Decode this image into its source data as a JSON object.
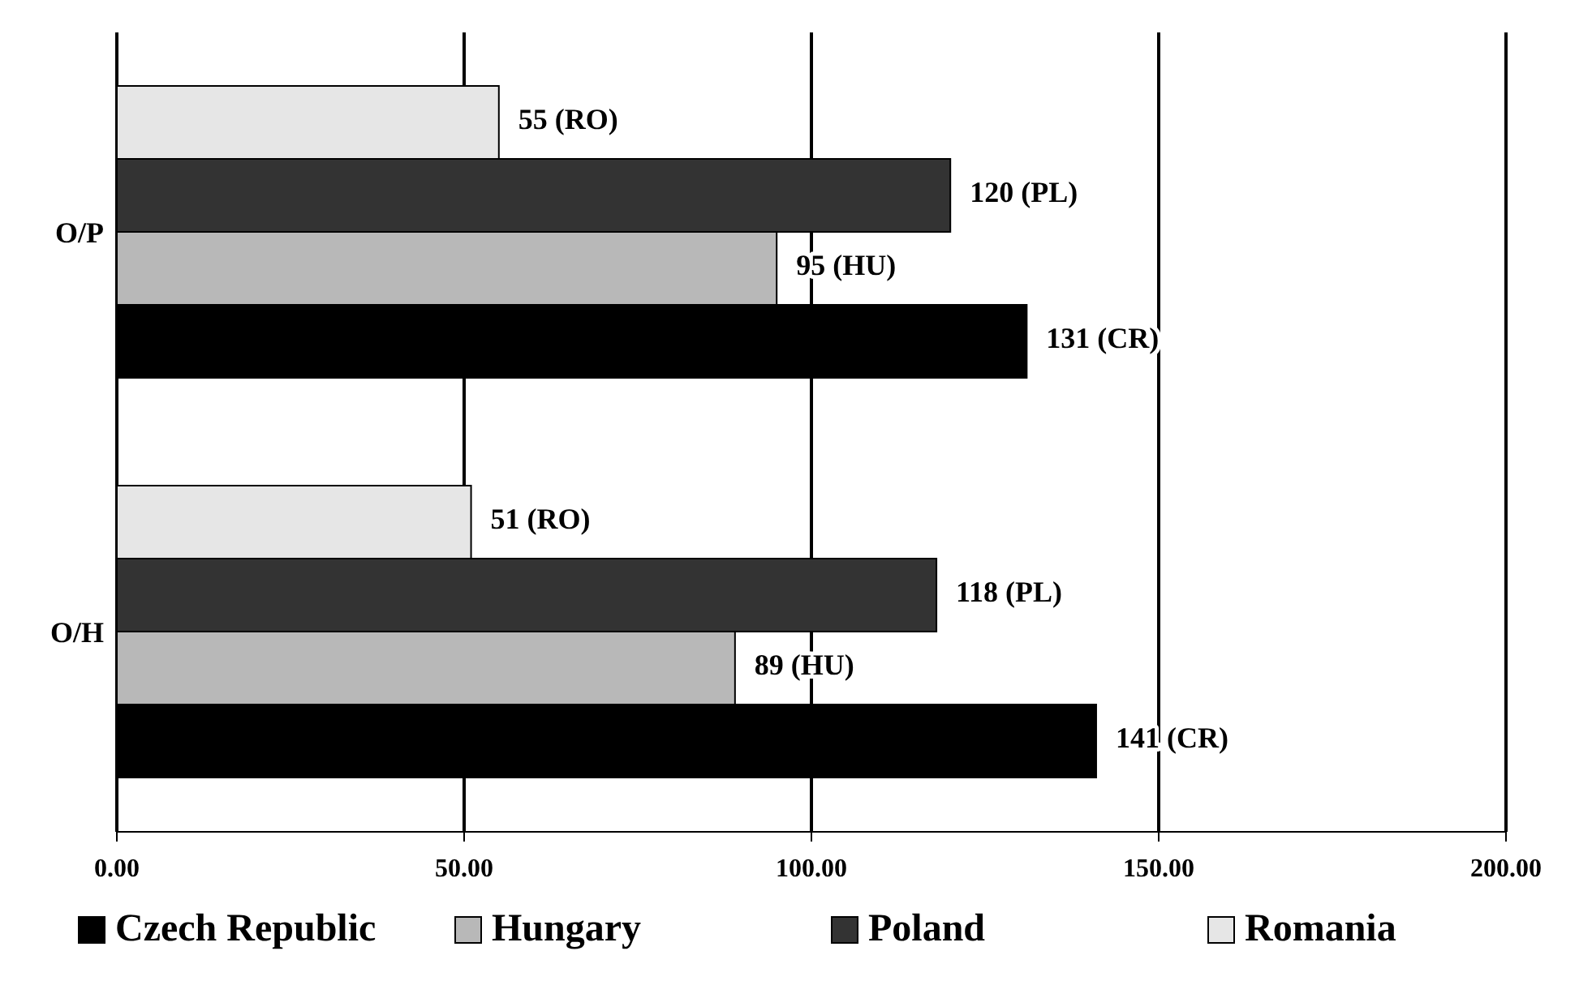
{
  "chart_data": {
    "type": "bar",
    "orientation": "horizontal",
    "categories": [
      "O/P",
      "O/H"
    ],
    "series": [
      {
        "name": "Czech Republic",
        "color": "#000000",
        "values": [
          131,
          141
        ],
        "value_labels": [
          "131 (CR)",
          "141 (CR)"
        ]
      },
      {
        "name": "Hungary",
        "color": "#b8b8b8",
        "values": [
          95,
          89
        ],
        "value_labels": [
          "95 (HU)",
          "89 (HU)"
        ]
      },
      {
        "name": "Poland",
        "color": "#333333",
        "values": [
          120,
          118
        ],
        "value_labels": [
          "120 (PL)",
          "118 (PL)"
        ]
      },
      {
        "name": "Romania",
        "color": "#e6e6e6",
        "values": [
          55,
          51
        ],
        "value_labels": [
          "55 (RO)",
          "51 (RO)"
        ]
      }
    ],
    "xlim": [
      0,
      200
    ],
    "xticks": [
      {
        "value": 0,
        "label": "0.00"
      },
      {
        "value": 50,
        "label": "50.00"
      },
      {
        "value": 100,
        "label": "100.00"
      },
      {
        "value": 150,
        "label": "150.00"
      },
      {
        "value": 200,
        "label": "200.00"
      }
    ],
    "grid": "x",
    "legend": "bottom"
  }
}
